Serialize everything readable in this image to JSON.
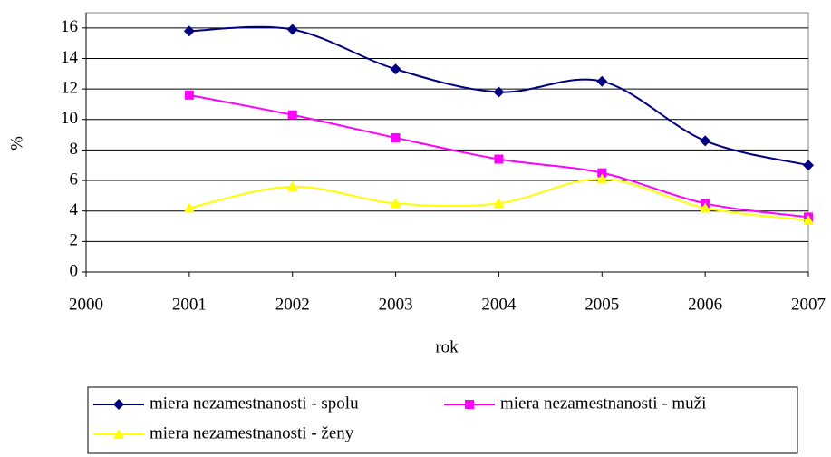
{
  "chart_data": {
    "type": "line",
    "x_label": "rok",
    "y_label": "%",
    "x": [
      2001,
      2002,
      2003,
      2004,
      2005,
      2006,
      2007
    ],
    "series": [
      {
        "name": "miera nezamestnanosti - spolu",
        "color": "#000080",
        "marker": "diamond",
        "values": [
          15.8,
          15.9,
          13.3,
          11.8,
          12.5,
          8.6,
          7.0
        ]
      },
      {
        "name": "miera nezamestnanosti - muži",
        "color": "#ff00ff",
        "marker": "square",
        "values": [
          11.6,
          10.3,
          8.8,
          7.4,
          6.5,
          4.5,
          3.6
        ]
      },
      {
        "name": "miera nezamestnanosti - ženy",
        "color": "#ffff00",
        "marker": "triangle",
        "values": [
          4.2,
          5.6,
          4.5,
          4.5,
          6.1,
          4.2,
          3.4
        ]
      }
    ],
    "xlim": [
      2000,
      2007
    ],
    "xticks": [
      2000,
      2001,
      2002,
      2003,
      2004,
      2005,
      2006,
      2007
    ],
    "ylim": [
      0,
      17
    ],
    "yticks": [
      0,
      2,
      4,
      6,
      8,
      10,
      12,
      14,
      16
    ],
    "grid": true,
    "smooth": true,
    "legend": "bottom"
  }
}
